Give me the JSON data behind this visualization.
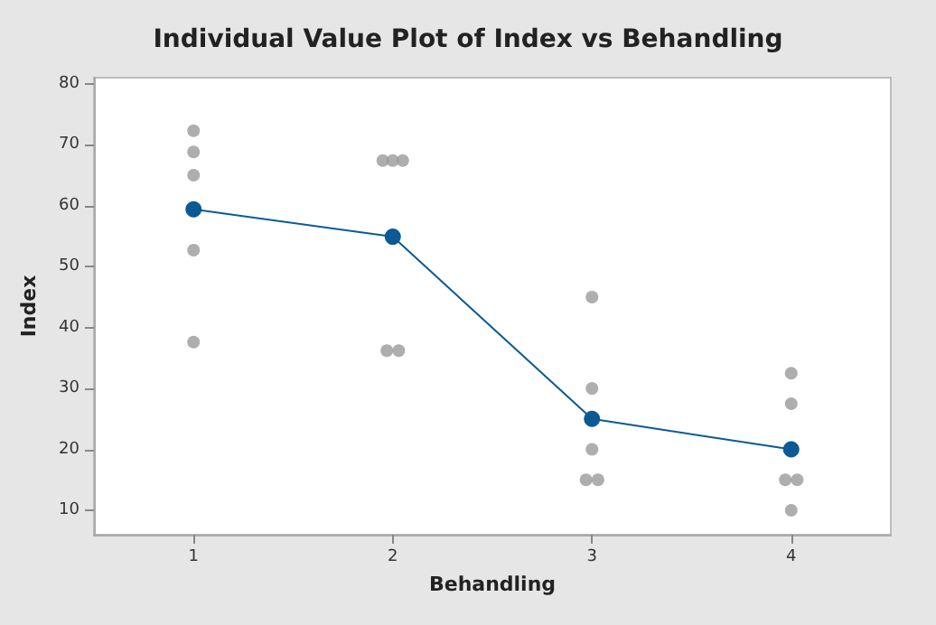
{
  "chart_data": {
    "type": "scatter",
    "title": "Individual Value Plot of Index vs Behandling",
    "xlabel": "Behandling",
    "ylabel": "Index",
    "xlim": [
      0.5,
      4.5
    ],
    "xticks": [
      1,
      2,
      3,
      4
    ],
    "ylim": [
      6,
      81
    ],
    "yticks": [
      10,
      20,
      30,
      40,
      50,
      60,
      70,
      80
    ],
    "grid": false,
    "series": [
      {
        "color": "#9a9a9a",
        "marker": "circle",
        "x": [
          1,
          1,
          1,
          1,
          1,
          1.95,
          2,
          2.05,
          1.97,
          2.03,
          3,
          3,
          3,
          2.97,
          3.03,
          4,
          4,
          3.97,
          4.03,
          4
        ],
        "values": [
          72.3,
          68.8,
          65,
          52.7,
          37.6,
          67.4,
          67.4,
          67.4,
          36.2,
          36.2,
          45,
          30,
          20,
          15,
          15,
          32.5,
          27.5,
          15,
          15,
          10
        ]
      },
      {
        "type": "line",
        "color": "#0b5a94",
        "marker": "circle",
        "line_style": "solid",
        "x": [
          1,
          2,
          3,
          4
        ],
        "values": [
          59.4,
          54.9,
          25,
          20
        ]
      }
    ]
  }
}
